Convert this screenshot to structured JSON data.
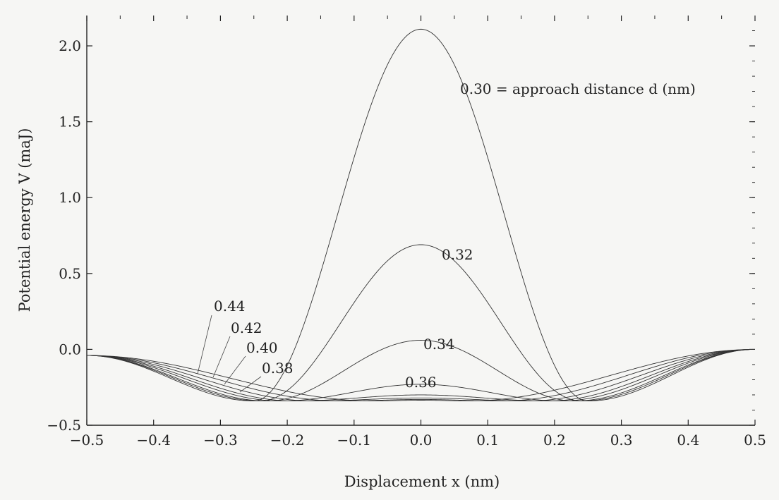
{
  "chart_data": {
    "type": "line",
    "xlabel": "Displacement x (nm)",
    "ylabel": "Potential energy V (maJ)",
    "xlim": [
      -0.5,
      0.5
    ],
    "ylim": [
      -0.5,
      2.2
    ],
    "xticks": [
      -0.5,
      -0.4,
      -0.3,
      -0.2,
      -0.1,
      0.0,
      0.1,
      0.2,
      0.3,
      0.4,
      0.5
    ],
    "xtick_labels": [
      "−0.5",
      "−0.4",
      "−0.3",
      "−0.2",
      "−0.1",
      "0.0",
      "0.1",
      "0.2",
      "0.3",
      "0.4",
      "0.5"
    ],
    "yticks": [
      -0.5,
      0.0,
      0.5,
      1.0,
      1.5,
      2.0
    ],
    "ytick_labels": [
      "−0.5",
      "0.0",
      "0.5",
      "1.0",
      "1.5",
      "2.0"
    ],
    "grid": false,
    "series": [
      {
        "name": "0.30",
        "label": "0.30 = approach distance d (nm)",
        "d": 0.3,
        "peak": 2.11,
        "well_x": 0.25,
        "end_left": -0.04,
        "end_right": 0.0
      },
      {
        "name": "0.32",
        "label": "0.32",
        "d": 0.32,
        "peak": 0.69,
        "well_x": 0.24,
        "end_left": -0.04,
        "end_right": 0.0
      },
      {
        "name": "0.34",
        "label": "0.34",
        "d": 0.34,
        "peak": 0.06,
        "well_x": 0.23,
        "end_left": -0.04,
        "end_right": 0.0
      },
      {
        "name": "0.36",
        "label": "0.36",
        "d": 0.36,
        "peak": -0.23,
        "well_x": 0.21,
        "end_left": -0.04,
        "end_right": 0.0
      },
      {
        "name": "0.38",
        "label": "0.38",
        "d": 0.38,
        "peak": -0.3,
        "well_x": 0.19,
        "end_left": -0.04,
        "end_right": 0.0
      },
      {
        "name": "0.40",
        "label": "0.40",
        "d": 0.4,
        "peak": -0.32,
        "well_x": 0.16,
        "end_left": -0.04,
        "end_right": 0.0
      },
      {
        "name": "0.42",
        "label": "0.42",
        "d": 0.42,
        "peak": -0.33,
        "well_x": 0.12,
        "end_left": -0.04,
        "end_right": 0.0
      },
      {
        "name": "0.44",
        "label": "0.44",
        "d": 0.44,
        "peak": -0.335,
        "well_x": 0.07,
        "end_left": -0.04,
        "end_right": 0.0
      }
    ],
    "well_depth": -0.34,
    "line_color": "#333333"
  }
}
